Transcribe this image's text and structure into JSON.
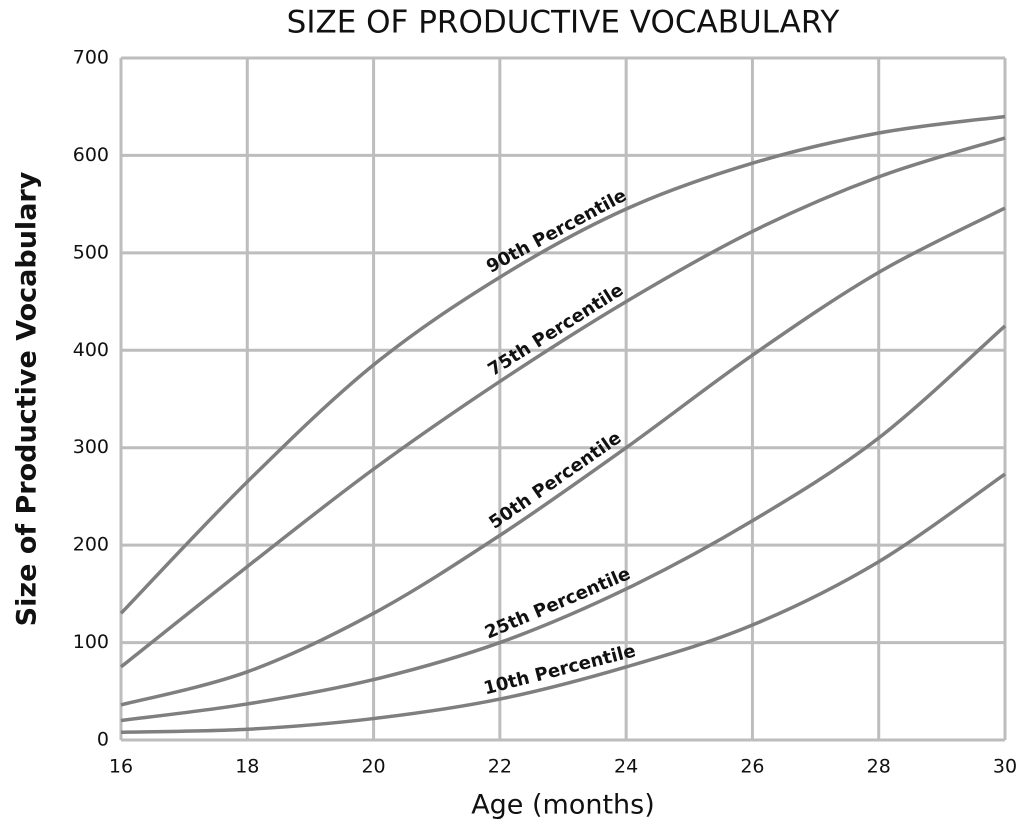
{
  "chart_data": {
    "type": "line",
    "title": "SIZE OF PRODUCTIVE VOCABULARY",
    "x_label": "Age (months)",
    "y_label": "Size of Productive Vocabulary",
    "x": [
      16,
      18,
      20,
      22,
      24,
      26,
      28,
      30
    ],
    "series": [
      {
        "name": "90th Percentile",
        "color": "#7f7f7f",
        "values": [
          130,
          265,
          385,
          475,
          545,
          592,
          623,
          640
        ]
      },
      {
        "name": "75th Percentile",
        "color": "#7f7f7f",
        "values": [
          75,
          178,
          278,
          368,
          450,
          522,
          578,
          618
        ]
      },
      {
        "name": "50th Percentile",
        "color": "#7f7f7f",
        "values": [
          36,
          70,
          130,
          210,
          300,
          395,
          480,
          546
        ]
      },
      {
        "name": "25th Percentile",
        "color": "#7f7f7f",
        "values": [
          20,
          37,
          62,
          100,
          155,
          225,
          310,
          425
        ]
      },
      {
        "name": "10th Percentile",
        "color": "#7f7f7f",
        "values": [
          8,
          11,
          22,
          42,
          75,
          118,
          183,
          273
        ]
      }
    ],
    "xlim": [
      16,
      30
    ],
    "xticks": [
      16,
      18,
      20,
      22,
      24,
      26,
      28,
      30
    ],
    "ylim": [
      0,
      700
    ],
    "yticks": [
      0,
      100,
      200,
      300,
      400,
      500,
      600,
      700
    ],
    "grid": true
  }
}
